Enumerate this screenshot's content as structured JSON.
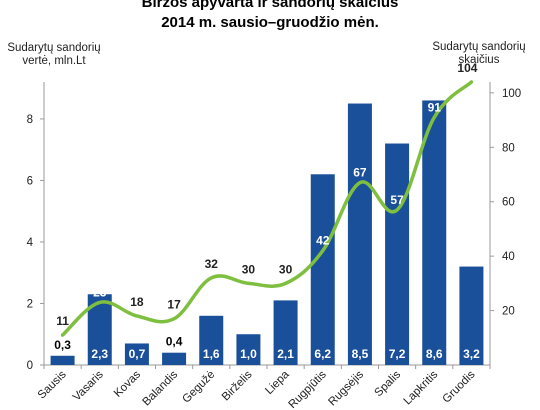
{
  "chart_data": {
    "type": "bar",
    "title": "Biržos apyvarta ir sandorių skaičius",
    "subtitle": "2014 m. sausio–gruodžio mėn.",
    "ylabel": "Sudarytų sandorių vertė, mln.Lt",
    "y2label": "Sudarytų sandorių skaičius",
    "categories": [
      "Sausis",
      "Vasaris",
      "Kovas",
      "Balandis",
      "Gegužė",
      "Birželis",
      "Liepa",
      "Rugpjūtis",
      "Rugsėjis",
      "Spalis",
      "Lapkritis",
      "Gruodis"
    ],
    "series": [
      {
        "type": "bar",
        "axis": "left",
        "values": [
          0.3,
          2.3,
          0.7,
          0.4,
          1.6,
          1.0,
          2.1,
          6.2,
          8.5,
          7.2,
          8.6,
          3.2
        ],
        "labels": [
          "0,3",
          "2,3",
          "0,7",
          "0,4",
          "1,6",
          "1,0",
          "2,1",
          "6,2",
          "8,5",
          "7,2",
          "8,6",
          "3,2"
        ],
        "color": "#1a4f9a"
      },
      {
        "type": "line",
        "axis": "right",
        "values": [
          11,
          23,
          18,
          17,
          32,
          30,
          30,
          42,
          67,
          57,
          91,
          104
        ],
        "labels": [
          "11",
          "23",
          "18",
          "17",
          "32",
          "30",
          "30",
          "42",
          "67",
          "57",
          "91",
          "104"
        ],
        "color": "#7fbf3f"
      }
    ],
    "ylim": [
      0,
      9.2
    ],
    "yticks": [
      "0",
      "2",
      "4",
      "6",
      "8"
    ],
    "y2lim": [
      0,
      104
    ],
    "y2ticks": [
      "20",
      "40",
      "60",
      "80",
      "100"
    ],
    "grid": false,
    "legend": "none"
  }
}
